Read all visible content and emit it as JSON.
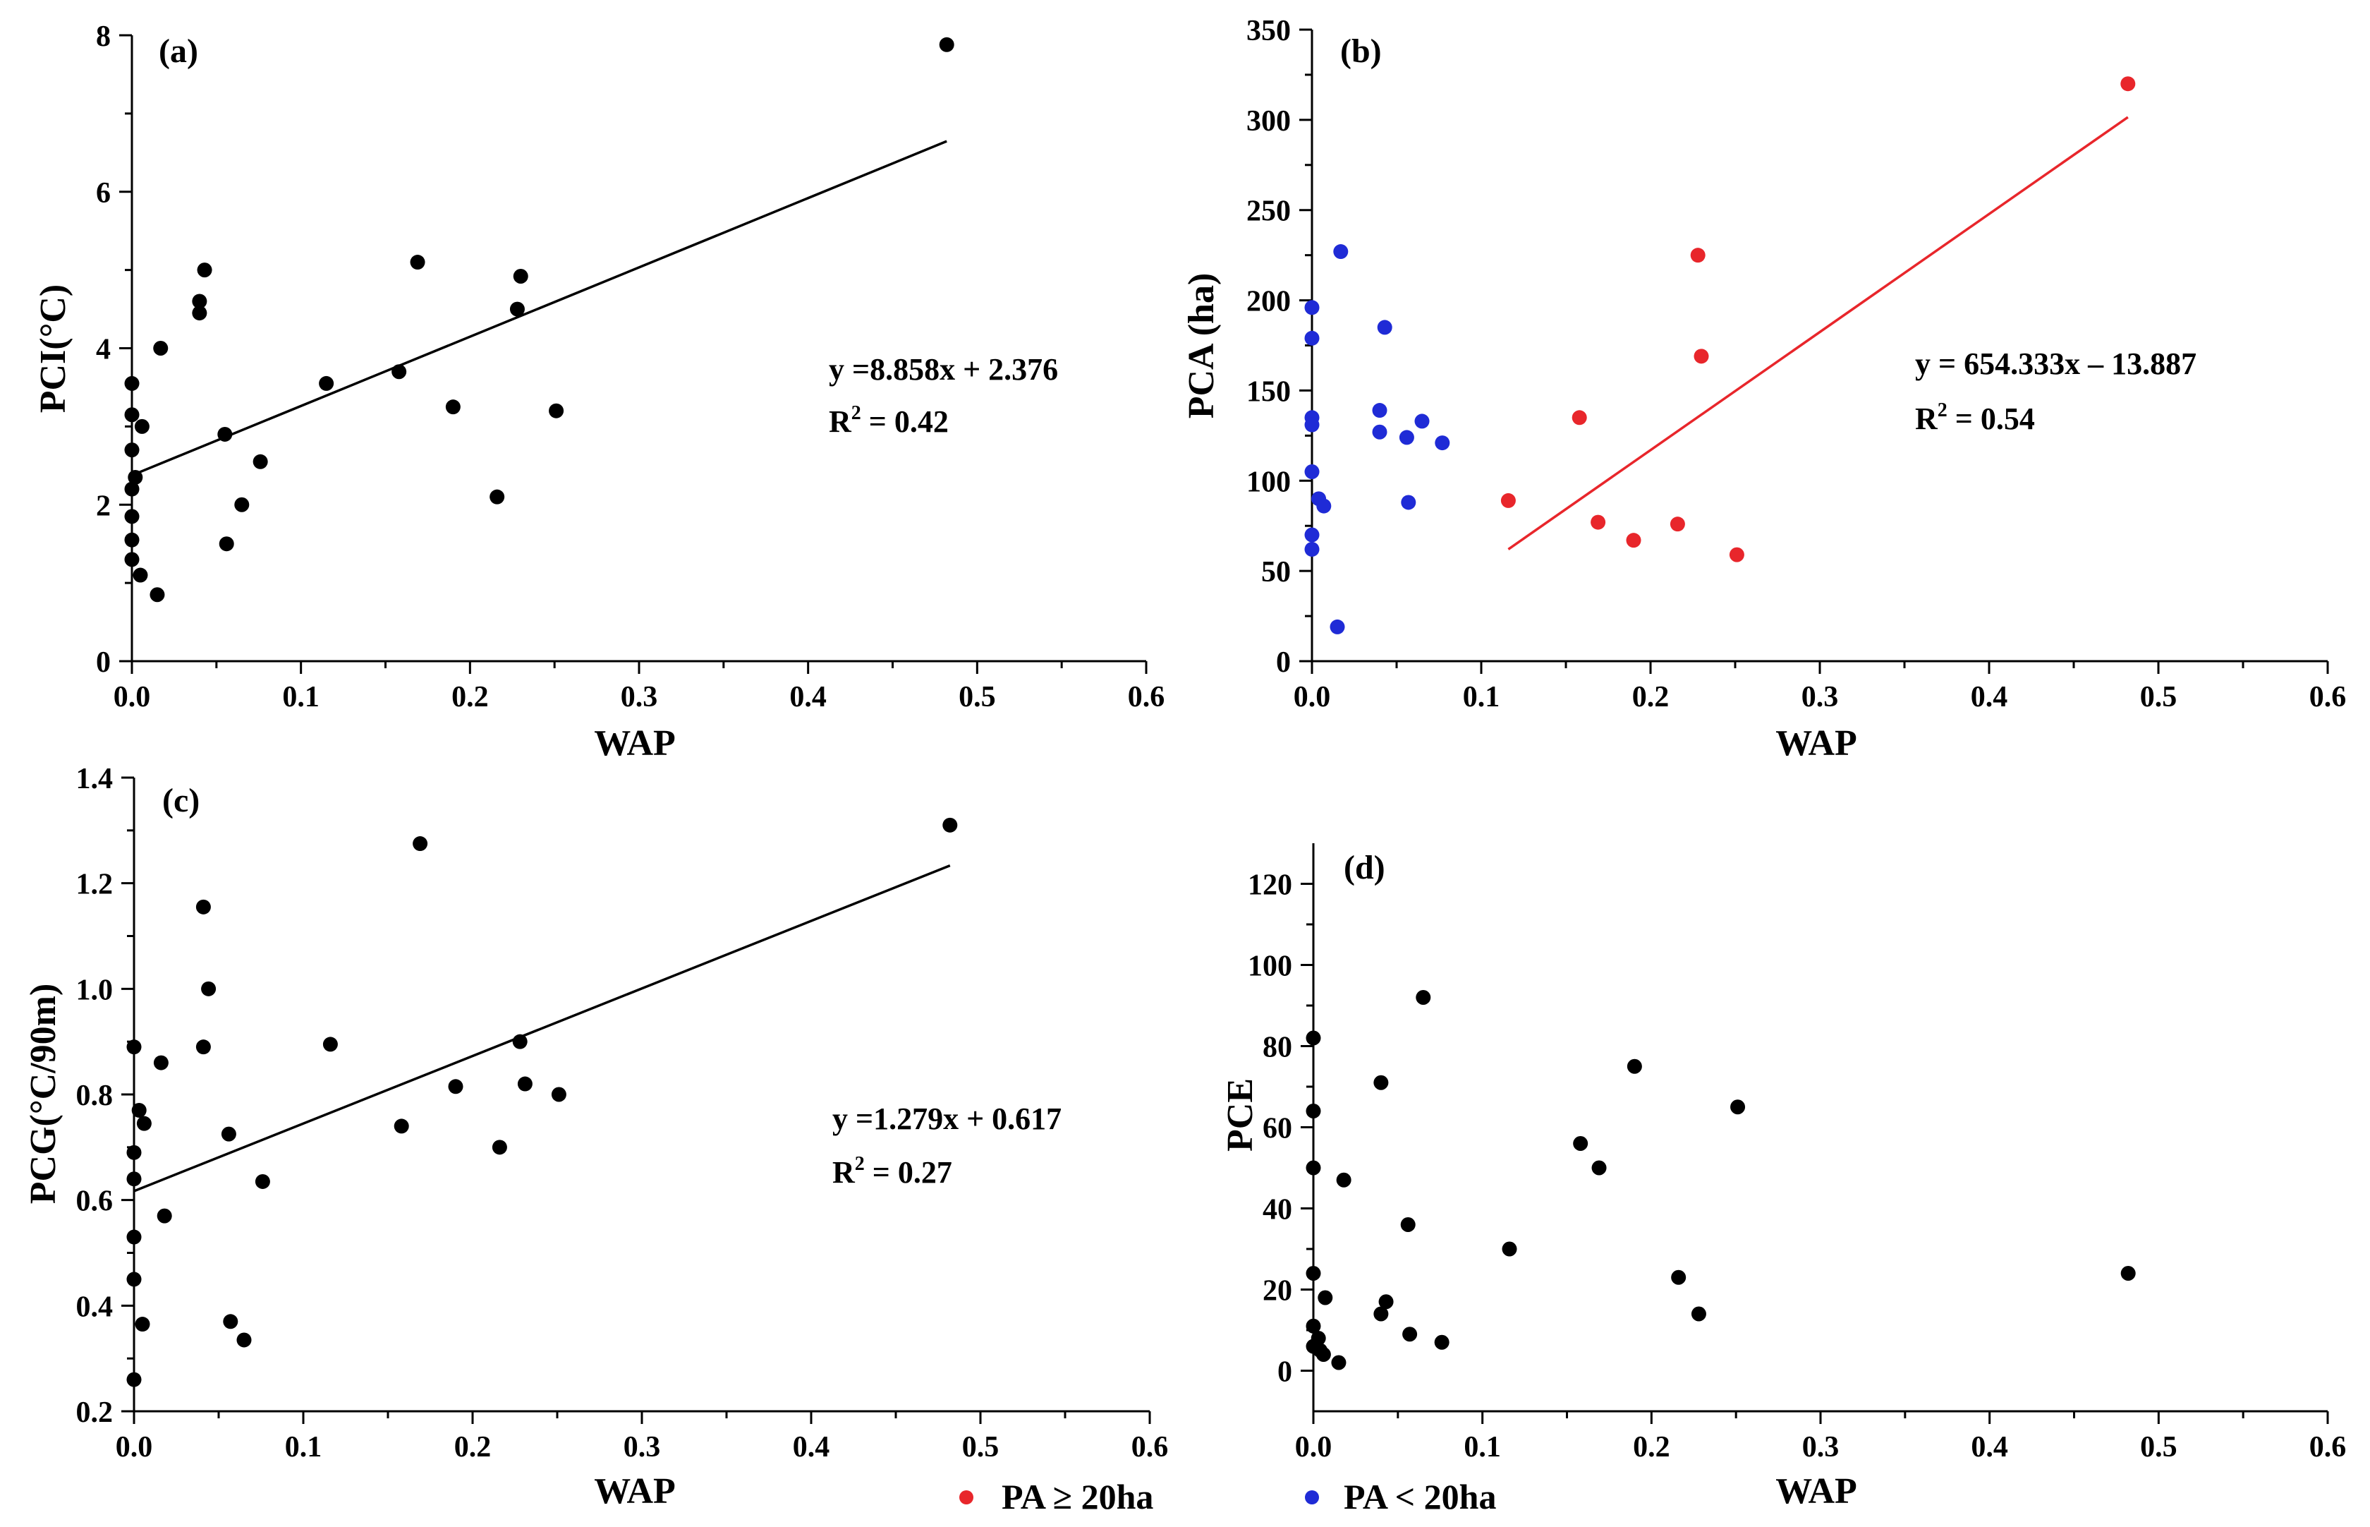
{
  "legend": {
    "items": [
      {
        "label": "PA ≥ 20ha",
        "color": "#e8262b"
      },
      {
        "label": "PA < 20ha",
        "color": "#1f2bd6"
      }
    ]
  },
  "chart_data": [
    {
      "id": "a",
      "type": "scatter",
      "panel_label": "(a)",
      "xlabel": "WAP",
      "ylabel": "PCI(°C)",
      "xlim": [
        0,
        0.6
      ],
      "ylim": [
        0,
        8
      ],
      "xticks": [
        0,
        0.1,
        0.2,
        0.3,
        0.4,
        0.5,
        0.6
      ],
      "xtick_labels": [
        "0.0",
        "0.1",
        "0.2",
        "0.3",
        "0.4",
        "0.5",
        "0.6"
      ],
      "yticks": [
        0,
        2,
        4,
        6,
        8
      ],
      "ytick_labels": [
        "0",
        "2",
        "4",
        "6",
        "8"
      ],
      "grid": false,
      "series": [
        {
          "color": "#000000",
          "points": [
            [
              0.0,
              3.55
            ],
            [
              0.0,
              3.15
            ],
            [
              0.0,
              2.7
            ],
            [
              0.0,
              2.2
            ],
            [
              0.0,
              1.85
            ],
            [
              0.0,
              1.55
            ],
            [
              0.0,
              1.3
            ],
            [
              0.002,
              2.35
            ],
            [
              0.006,
              3.0
            ],
            [
              0.005,
              1.1
            ],
            [
              0.015,
              0.85
            ],
            [
              0.017,
              4.0
            ],
            [
              0.04,
              4.45
            ],
            [
              0.04,
              4.6
            ],
            [
              0.043,
              5.0
            ],
            [
              0.055,
              2.9
            ],
            [
              0.056,
              1.5
            ],
            [
              0.065,
              2.0
            ],
            [
              0.076,
              2.55
            ],
            [
              0.115,
              3.55
            ],
            [
              0.158,
              3.7
            ],
            [
              0.169,
              5.1
            ],
            [
              0.19,
              3.25
            ],
            [
              0.216,
              2.1
            ],
            [
              0.228,
              4.5
            ],
            [
              0.23,
              4.92
            ],
            [
              0.251,
              3.2
            ],
            [
              0.482,
              7.88
            ]
          ]
        }
      ],
      "fit": {
        "color": "#000000",
        "slope": 8.858,
        "intercept": 2.376,
        "x_range": [
          0,
          0.482
        ]
      },
      "equation": "y =8.858x + 2.376",
      "r2_prefix": "R",
      "r2_sup": "2",
      "r2_value": " = 0.42"
    },
    {
      "id": "b",
      "type": "scatter",
      "panel_label": "(b)",
      "xlabel": "WAP",
      "ylabel": "PCA (ha)",
      "xlim": [
        0,
        0.6
      ],
      "ylim": [
        0,
        350
      ],
      "xticks": [
        0,
        0.1,
        0.2,
        0.3,
        0.4,
        0.5,
        0.6
      ],
      "xtick_labels": [
        "0.0",
        "0.1",
        "0.2",
        "0.3",
        "0.4",
        "0.5",
        "0.6"
      ],
      "yticks": [
        0,
        50,
        100,
        150,
        200,
        250,
        300,
        350
      ],
      "ytick_labels": [
        "0",
        "50",
        "100",
        "150",
        "200",
        "250",
        "300",
        "350"
      ],
      "grid": false,
      "series": [
        {
          "color": "#1f2bd6",
          "points": [
            [
              0.0,
              196
            ],
            [
              0.0,
              179
            ],
            [
              0.0,
              135
            ],
            [
              0.0,
              131
            ],
            [
              0.0,
              105
            ],
            [
              0.0,
              70
            ],
            [
              0.0,
              62
            ],
            [
              0.004,
              90
            ],
            [
              0.007,
              86
            ],
            [
              0.015,
              19
            ],
            [
              0.017,
              227
            ],
            [
              0.04,
              139
            ],
            [
              0.04,
              127
            ],
            [
              0.043,
              185
            ],
            [
              0.056,
              124
            ],
            [
              0.057,
              88
            ],
            [
              0.065,
              133
            ],
            [
              0.077,
              121
            ]
          ]
        },
        {
          "color": "#e8262b",
          "points": [
            [
              0.116,
              89
            ],
            [
              0.158,
              135
            ],
            [
              0.169,
              77
            ],
            [
              0.19,
              67
            ],
            [
              0.216,
              76
            ],
            [
              0.228,
              225
            ],
            [
              0.23,
              169
            ],
            [
              0.251,
              59
            ],
            [
              0.482,
              320
            ]
          ]
        }
      ],
      "fit": {
        "color": "#e8262b",
        "slope": 654.333,
        "intercept": -13.887,
        "x_range": [
          0.116,
          0.482
        ]
      },
      "equation": "y = 654.333x – 13.887",
      "r2_prefix": "R",
      "r2_sup": "2",
      "r2_value": " = 0.54",
      "annotation_color": "#e8262b"
    },
    {
      "id": "c",
      "type": "scatter",
      "panel_label": "(c)",
      "xlabel": "WAP",
      "ylabel": "PCG(°C/90m)",
      "xlim": [
        0,
        0.6
      ],
      "ylim": [
        0.2,
        1.4
      ],
      "xticks": [
        0,
        0.1,
        0.2,
        0.3,
        0.4,
        0.5,
        0.6
      ],
      "xtick_labels": [
        "0.0",
        "0.1",
        "0.2",
        "0.3",
        "0.4",
        "0.5",
        "0.6"
      ],
      "yticks": [
        0.2,
        0.4,
        0.6,
        0.8,
        1.0,
        1.2,
        1.4
      ],
      "ytick_labels": [
        "0.2",
        "0.4",
        "0.6",
        "0.8",
        "1.0",
        "1.2",
        "1.4"
      ],
      "grid": false,
      "series": [
        {
          "color": "#000000",
          "points": [
            [
              0.0,
              0.89
            ],
            [
              0.0,
              0.69
            ],
            [
              0.0,
              0.64
            ],
            [
              0.0,
              0.53
            ],
            [
              0.0,
              0.45
            ],
            [
              0.0,
              0.26
            ],
            [
              0.003,
              0.77
            ],
            [
              0.006,
              0.745
            ],
            [
              0.005,
              0.365
            ],
            [
              0.016,
              0.86
            ],
            [
              0.018,
              0.57
            ],
            [
              0.041,
              1.155
            ],
            [
              0.041,
              0.89
            ],
            [
              0.044,
              1.0
            ],
            [
              0.056,
              0.725
            ],
            [
              0.057,
              0.37
            ],
            [
              0.065,
              0.335
            ],
            [
              0.076,
              0.635
            ],
            [
              0.116,
              0.895
            ],
            [
              0.158,
              0.74
            ],
            [
              0.169,
              1.275
            ],
            [
              0.19,
              0.815
            ],
            [
              0.216,
              0.7
            ],
            [
              0.228,
              0.9
            ],
            [
              0.231,
              0.82
            ],
            [
              0.251,
              0.8
            ],
            [
              0.482,
              1.31
            ]
          ]
        }
      ],
      "fit": {
        "color": "#000000",
        "slope": 1.279,
        "intercept": 0.617,
        "x_range": [
          0,
          0.482
        ]
      },
      "equation": "y =1.279x + 0.617",
      "r2_prefix": "R",
      "r2_sup": "2",
      "r2_value": " = 0.27"
    },
    {
      "id": "d",
      "type": "scatter",
      "panel_label": "(d)",
      "xlabel": "WAP",
      "ylabel": "PCE",
      "xlim": [
        0,
        0.6
      ],
      "ylim": [
        -10,
        130
      ],
      "xticks": [
        0,
        0.1,
        0.2,
        0.3,
        0.4,
        0.5,
        0.6
      ],
      "xtick_labels": [
        "0.0",
        "0.1",
        "0.2",
        "0.3",
        "0.4",
        "0.5",
        "0.6"
      ],
      "yticks": [
        0,
        20,
        40,
        60,
        80,
        100,
        120
      ],
      "ytick_labels": [
        "0",
        "20",
        "40",
        "60",
        "80",
        "100",
        "120"
      ],
      "grid": false,
      "series": [
        {
          "color": "#000000",
          "points": [
            [
              0.0,
              82
            ],
            [
              0.0,
              64
            ],
            [
              0.0,
              50
            ],
            [
              0.0,
              24
            ],
            [
              0.0,
              11
            ],
            [
              0.0,
              6
            ],
            [
              0.003,
              8
            ],
            [
              0.004,
              5
            ],
            [
              0.006,
              4
            ],
            [
              0.007,
              18
            ],
            [
              0.015,
              2
            ],
            [
              0.018,
              47
            ],
            [
              0.04,
              71
            ],
            [
              0.04,
              14
            ],
            [
              0.043,
              17
            ],
            [
              0.056,
              36
            ],
            [
              0.057,
              9
            ],
            [
              0.065,
              92
            ],
            [
              0.076,
              7
            ],
            [
              0.116,
              30
            ],
            [
              0.158,
              56
            ],
            [
              0.169,
              50
            ],
            [
              0.19,
              75
            ],
            [
              0.216,
              23
            ],
            [
              0.228,
              14
            ],
            [
              0.251,
              65
            ],
            [
              0.482,
              24
            ]
          ]
        }
      ]
    }
  ]
}
